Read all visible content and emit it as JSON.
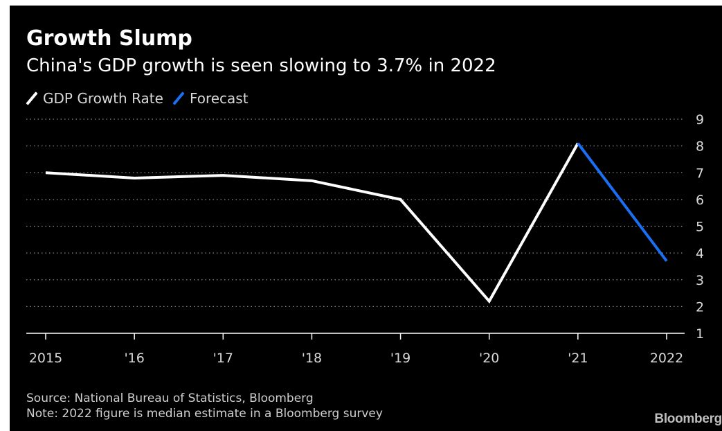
{
  "chart_data": {
    "type": "line",
    "title": "Growth Slump",
    "subtitle": "China's GDP growth is seen slowing to 3.7% in 2022",
    "categories": [
      "2015",
      "'16",
      "'17",
      "'18",
      "'19",
      "'20",
      "'21",
      "2022"
    ],
    "series": [
      {
        "name": "GDP Growth Rate",
        "color": "#ffffff",
        "x": [
          "2015",
          "'16",
          "'17",
          "'18",
          "'19",
          "'20",
          "'21"
        ],
        "values": [
          7.0,
          6.8,
          6.9,
          6.7,
          6.0,
          2.2,
          8.1
        ]
      },
      {
        "name": "Forecast",
        "color": "#1a6ff2",
        "x": [
          "'21",
          "2022"
        ],
        "values": [
          8.1,
          3.7
        ]
      }
    ],
    "yticks": [
      "1",
      "2",
      "3",
      "4",
      "5",
      "6",
      "7",
      "8",
      "9"
    ],
    "ylim": [
      1,
      9
    ],
    "grid": true,
    "y_axis_side": "right",
    "legend_position": "top-left"
  },
  "footer": {
    "source": "Source: National Bureau of Statistics, Bloomberg",
    "note": "Note: 2022 figure is median estimate in a Bloomberg survey"
  },
  "brand": "Bloomberg"
}
